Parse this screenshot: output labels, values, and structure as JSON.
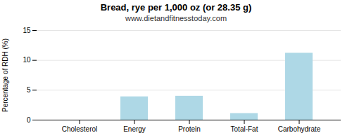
{
  "chart_data": {
    "type": "bar",
    "title": "Bread, rye per 1,000 oz (or 28.35 g)",
    "subtitle": "www.dietandfitnesstoday.com",
    "categories": [
      "Cholesterol",
      "Energy",
      "Protein",
      "Total-Fat",
      "Carbohydrate"
    ],
    "values": [
      0,
      3.9,
      4.0,
      1.1,
      11.2
    ],
    "color": "#aed8e6",
    "ylabel": "Percentage of RDH (%)",
    "ylim": [
      0,
      15
    ],
    "yticks": [
      0,
      5,
      10,
      15
    ],
    "grid": true
  }
}
